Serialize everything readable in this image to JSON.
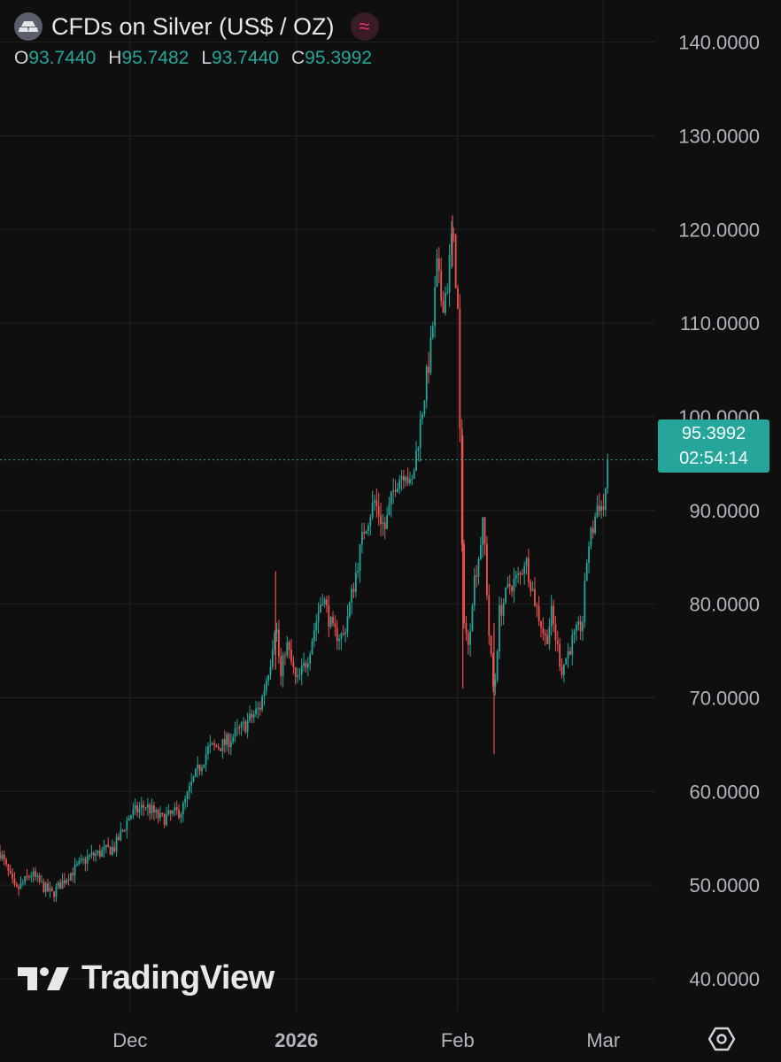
{
  "header": {
    "title": "CFDs on Silver (US$ / OZ)",
    "approx_symbol": "≈",
    "ohlc": [
      {
        "key": "O",
        "value": "93.7440"
      },
      {
        "key": "H",
        "value": "95.7482"
      },
      {
        "key": "L",
        "value": "93.7440"
      },
      {
        "key": "C",
        "value": "95.3992"
      }
    ]
  },
  "price_tag": {
    "price": "95.3992",
    "countdown": "02:54:14"
  },
  "logo": {
    "text": "TradingView"
  },
  "colors": {
    "background": "#0f0f0f",
    "up": "#26a69a",
    "down": "#ef5350",
    "grid": "#222222",
    "axis_text": "#b2b5be"
  },
  "icons": {
    "symbol": "silver-bars-icon",
    "approx": "approx-badge-icon",
    "settings": "gear-icon"
  },
  "chart_data": {
    "type": "candlestick",
    "title": "CFDs on Silver (US$ / OZ)",
    "ylim": [
      36.5,
      144.5
    ],
    "yticks": [
      "40.0000",
      "50.0000",
      "60.0000",
      "70.0000",
      "80.0000",
      "90.0000",
      "100.0000",
      "110.0000",
      "120.0000",
      "130.0000",
      "140.0000"
    ],
    "xlim": [
      "2025-11-04",
      "2026-03-10"
    ],
    "xticks": [
      {
        "date": "2025-11-29",
        "label": "Dec",
        "bold": false
      },
      {
        "date": "2025-12-31",
        "label": "2026",
        "bold": true
      },
      {
        "date": "2026-01-31",
        "label": "Feb",
        "bold": false
      },
      {
        "date": "2026-02-28",
        "label": "Mar",
        "bold": false
      }
    ],
    "last_price": 95.3992,
    "grid": true,
    "series_path": [
      [
        "2025-11-04",
        53.5
      ],
      [
        "2025-11-07",
        49.3
      ],
      [
        "2025-11-10",
        51.2
      ],
      [
        "2025-11-12",
        50.0
      ],
      [
        "2025-11-14",
        49.0
      ],
      [
        "2025-11-17",
        51.0
      ],
      [
        "2025-11-21",
        53.0
      ],
      [
        "2025-11-26",
        54.0
      ],
      [
        "2025-11-29",
        57.5
      ],
      [
        "2025-12-02",
        58.5
      ],
      [
        "2025-12-05",
        57.0
      ],
      [
        "2025-12-09",
        58.0
      ],
      [
        "2025-12-11",
        61.0
      ],
      [
        "2025-12-14",
        64.5
      ],
      [
        "2025-12-17",
        65.0
      ],
      [
        "2025-12-21",
        67.0
      ],
      [
        "2025-12-24",
        69.0
      ],
      [
        "2025-12-26",
        74.0
      ],
      [
        "2025-12-27",
        78.5
      ],
      [
        "2025-12-28",
        72.0
      ],
      [
        "2025-12-29",
        76.0
      ],
      [
        "2025-12-31",
        71.5
      ],
      [
        "2026-01-02",
        74.0
      ],
      [
        "2026-01-05",
        81.0
      ],
      [
        "2026-01-07",
        77.0
      ],
      [
        "2026-01-09",
        76.5
      ],
      [
        "2026-01-11",
        82.0
      ],
      [
        "2026-01-13",
        88.0
      ],
      [
        "2026-01-15",
        91.0
      ],
      [
        "2026-01-17",
        88.0
      ],
      [
        "2026-01-19",
        93.0
      ],
      [
        "2026-01-21",
        94.5
      ],
      [
        "2026-01-22",
        92.0
      ],
      [
        "2026-01-24",
        100.0
      ],
      [
        "2026-01-26",
        108.0
      ],
      [
        "2026-01-27",
        116.0
      ],
      [
        "2026-01-28",
        112.0
      ],
      [
        "2026-01-29",
        114.0
      ],
      [
        "2026-01-30",
        120.0
      ],
      [
        "2026-01-31",
        112.0
      ],
      [
        "2026-02-01",
        80.0
      ],
      [
        "2026-02-02",
        75.0
      ],
      [
        "2026-02-03",
        82.0
      ],
      [
        "2026-02-04",
        85.0
      ],
      [
        "2026-02-05",
        89.0
      ],
      [
        "2026-02-06",
        77.0
      ],
      [
        "2026-02-07",
        70.0
      ],
      [
        "2026-02-08",
        79.0
      ],
      [
        "2026-02-10",
        82.0
      ],
      [
        "2026-02-12",
        83.0
      ],
      [
        "2026-02-13",
        85.0
      ],
      [
        "2026-02-15",
        80.0
      ],
      [
        "2026-02-17",
        76.0
      ],
      [
        "2026-02-18",
        79.0
      ],
      [
        "2026-02-20",
        73.0
      ],
      [
        "2026-02-22",
        76.0
      ],
      [
        "2026-02-24",
        78.0
      ],
      [
        "2026-02-25",
        86.0
      ],
      [
        "2026-02-26",
        88.0
      ],
      [
        "2026-02-27",
        91.0
      ],
      [
        "2026-02-28",
        90.0
      ],
      [
        "2026-03-01",
        95.4
      ]
    ]
  }
}
